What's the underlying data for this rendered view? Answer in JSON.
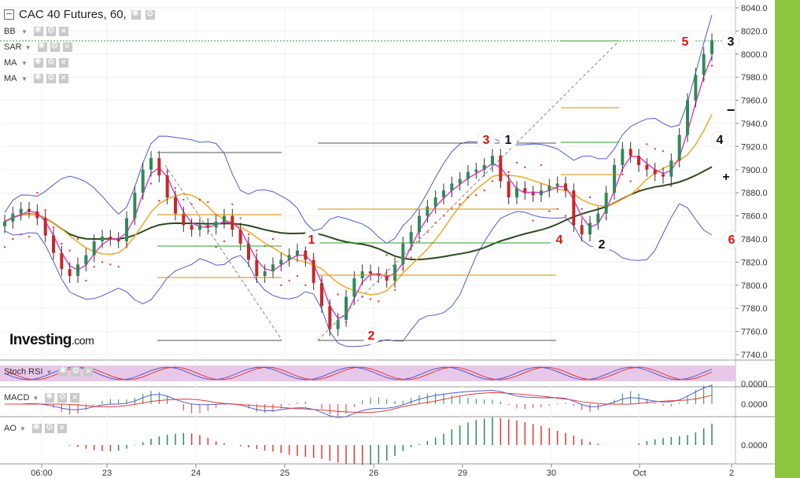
{
  "header": {
    "title": "CAC 40 Futures, 60,",
    "indicators": [
      "BB",
      "SAR",
      "MA",
      "MA"
    ]
  },
  "logo": {
    "main": "Investing",
    "suffix": ".com"
  },
  "subpanels": {
    "stoch_label": "Stoch RSI",
    "macd_label": "MACD",
    "ao_label": "AO"
  },
  "chart_data": {
    "type": "line",
    "title": "CAC 40 Futures, 60,",
    "price_axis": {
      "ticks": [
        "8040.0",
        "8020.0",
        "8000.0",
        "7980.0",
        "7960.0",
        "7940.0",
        "7920.0",
        "7900.0",
        "7880.0",
        "7860.0",
        "7840.0",
        "7820.0",
        "7800.0",
        "7780.0",
        "7760.0",
        "7740.0"
      ],
      "ylim": [
        7734,
        8046
      ]
    },
    "time_axis": {
      "ticks": [
        "06:00",
        "23",
        "24",
        "25",
        "26",
        "29",
        "30",
        "Oct",
        "2"
      ]
    },
    "price_series": [
      {
        "name": "close",
        "values": [
          7855,
          7862,
          7866,
          7864,
          7858,
          7843,
          7828,
          7814,
          7808,
          7818,
          7826,
          7838,
          7842,
          7840,
          7838,
          7858,
          7880,
          7900,
          7910,
          7895,
          7876,
          7862,
          7852,
          7848,
          7852,
          7850,
          7855,
          7860,
          7848,
          7836,
          7822,
          7808,
          7812,
          7818,
          7822,
          7826,
          7830,
          7822,
          7802,
          7782,
          7762,
          7770,
          7790,
          7806,
          7812,
          7810,
          7808,
          7804,
          7818,
          7836,
          7846,
          7860,
          7868,
          7876,
          7882,
          7888,
          7892,
          7898,
          7900,
          7904,
          7912,
          7890,
          7876,
          7884,
          7880,
          7878,
          7882,
          7886,
          7888,
          7882,
          7852,
          7844,
          7854,
          7862,
          7880,
          7904,
          7918,
          7912,
          7904,
          7900,
          7896,
          7894,
          7908,
          7930,
          7960,
          7982,
          8000,
          8012
        ],
        "ylim": [
          7734,
          8046
        ]
      }
    ],
    "pivot_labels_red": [
      "1",
      "2",
      "3",
      "4",
      "5",
      "6"
    ],
    "pivot_labels_black": [
      "1",
      "2",
      "3",
      "4"
    ],
    "cross_markers": [
      "+",
      "−"
    ],
    "sub_axes": {
      "stoch": "0.0000",
      "macd": "0.0000",
      "ao": "0.0000"
    },
    "colors": {
      "price_up": "#2e8b57",
      "price_down": "#c62828",
      "bollinger": "#4f5bd5",
      "ma_fast": "#e040c8",
      "ma_mid": "#f5a623",
      "ma_slow": "#2e4a1e",
      "sar": "#e53935",
      "background": "#ffffff",
      "accent_green": "#8ec63f"
    },
    "grid": true
  }
}
